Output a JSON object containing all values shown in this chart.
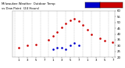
{
  "title_left": "Milwaukee Weather  Outdoor Temp",
  "title_right": "vs Dew Point  (24 Hours)",
  "bg_color": "#ffffff",
  "plot_bg": "#ffffff",
  "grid_color": "#bbbbbb",
  "temp_color": "#cc0000",
  "dew_color": "#0000cc",
  "legend_blue_color": "#0000cc",
  "legend_red_color": "#cc0000",
  "hours": [
    0,
    1,
    2,
    3,
    4,
    5,
    6,
    7,
    8,
    9,
    10,
    11,
    12,
    13,
    14,
    15,
    16,
    17,
    18,
    19,
    20,
    21,
    22,
    23
  ],
  "temp": [
    null,
    28,
    null,
    30,
    null,
    31,
    null,
    null,
    35,
    38,
    42,
    46,
    49,
    52,
    53,
    51,
    48,
    44,
    40,
    null,
    36,
    34,
    null,
    33
  ],
  "dew": [
    null,
    null,
    null,
    null,
    null,
    null,
    null,
    null,
    null,
    27,
    28,
    28,
    27,
    30,
    32,
    30,
    null,
    null,
    null,
    null,
    null,
    null,
    null,
    null
  ],
  "ylim": [
    20,
    60
  ],
  "yticks": [
    20,
    25,
    30,
    35,
    40,
    45,
    50,
    55,
    60
  ],
  "xlim": [
    -0.5,
    23.5
  ],
  "xtick_positions": [
    1,
    3,
    5,
    7,
    9,
    11,
    13,
    15,
    17,
    19,
    21,
    23
  ],
  "xtick_labels": [
    "1",
    "3",
    "5",
    "7",
    "1",
    "3",
    "5",
    "7",
    "1",
    "3",
    "5",
    "7"
  ],
  "marker_size": 1.8,
  "tick_fontsize": 2.8,
  "title_fontsize": 2.8
}
